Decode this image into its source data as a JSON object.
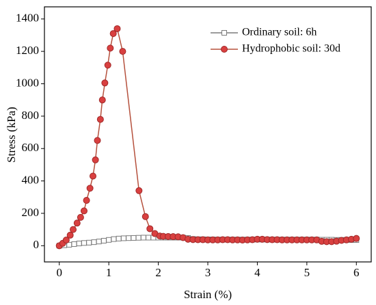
{
  "chart_data": {
    "type": "line",
    "xlabel": "Strain (%)",
    "ylabel": "Stress (kPa)",
    "xlim": [
      -0.3,
      6.3
    ],
    "xticks": [
      0,
      1,
      2,
      3,
      4,
      5,
      6
    ],
    "ylim": [
      -100,
      1475
    ],
    "yticks": [
      0,
      200,
      400,
      600,
      800,
      1000,
      1200,
      1400
    ],
    "legend": "upper right",
    "series": [
      {
        "name": "Ordinary soil: 6h",
        "color": "#7a7a7a",
        "marker": "square",
        "x": [
          0,
          0.1,
          0.2,
          0.3,
          0.4,
          0.5,
          0.6,
          0.7,
          0.8,
          0.9,
          1.0,
          1.1,
          1.2,
          1.3,
          1.4,
          1.5,
          1.6,
          1.7,
          1.8,
          1.9,
          2.0,
          2.1,
          2.2,
          2.3,
          2.4,
          2.5,
          2.6,
          2.7,
          2.8,
          2.9,
          3.0,
          3.1,
          3.2,
          3.3,
          3.4,
          3.5,
          3.6,
          3.7,
          3.8,
          3.9,
          4.0,
          4.1,
          4.2,
          4.3,
          4.4,
          4.5,
          4.6,
          4.7,
          4.8,
          4.9,
          5.0,
          5.1,
          5.2,
          5.3,
          5.4,
          5.5,
          5.6,
          5.7,
          5.8,
          5.9,
          6.0
        ],
        "values": [
          0,
          3,
          6,
          10,
          14,
          17,
          19,
          22,
          26,
          31,
          36,
          41,
          44,
          46,
          47,
          48,
          49,
          50,
          50,
          50,
          50,
          50,
          50,
          50,
          50,
          50,
          48,
          42,
          40,
          40,
          39,
          39,
          38,
          38,
          38,
          38,
          38,
          38,
          38,
          38,
          38,
          38,
          38,
          38,
          38,
          38,
          38,
          38,
          38,
          38,
          38,
          38,
          38,
          37,
          37,
          37,
          36,
          36,
          36,
          35,
          35
        ]
      },
      {
        "name": "Hydrophobic soil: 30d",
        "color": "#d94040",
        "marker": "circle",
        "x": [
          0,
          0.07,
          0.14,
          0.22,
          0.28,
          0.36,
          0.43,
          0.5,
          0.55,
          0.62,
          0.68,
          0.73,
          0.77,
          0.83,
          0.87,
          0.92,
          0.98,
          1.03,
          1.09,
          1.17,
          1.28,
          1.61,
          1.74,
          1.83,
          1.93,
          2.03,
          2.1,
          2.2,
          2.3,
          2.4,
          2.5,
          2.6,
          2.7,
          2.8,
          2.9,
          3.0,
          3.1,
          3.2,
          3.3,
          3.4,
          3.5,
          3.6,
          3.7,
          3.8,
          3.9,
          4.0,
          4.1,
          4.2,
          4.3,
          4.4,
          4.5,
          4.6,
          4.7,
          4.8,
          4.9,
          5.0,
          5.1,
          5.2,
          5.3,
          5.4,
          5.5,
          5.6,
          5.7,
          5.8,
          5.9,
          6.0
        ],
        "values": [
          0,
          15,
          35,
          65,
          100,
          140,
          175,
          215,
          280,
          355,
          430,
          530,
          650,
          780,
          900,
          1005,
          1115,
          1220,
          1310,
          1340,
          1200,
          340,
          180,
          105,
          75,
          60,
          58,
          57,
          56,
          55,
          50,
          40,
          38,
          37,
          37,
          36,
          36,
          36,
          37,
          37,
          36,
          36,
          35,
          36,
          37,
          40,
          40,
          38,
          37,
          37,
          36,
          36,
          36,
          36,
          36,
          36,
          36,
          36,
          27,
          25,
          25,
          28,
          33,
          36,
          40,
          45
        ]
      }
    ]
  }
}
